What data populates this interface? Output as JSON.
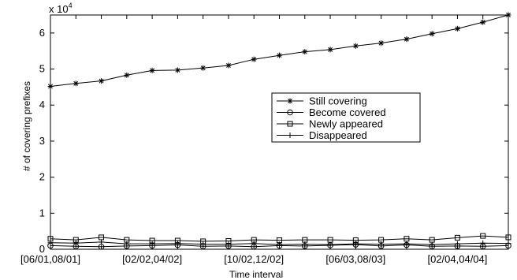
{
  "chart_data": {
    "type": "line",
    "xlabel": "Time interval",
    "ylabel": "# of covering prefixes",
    "y_multiplier": "x 10",
    "y_multiplier_exp": "4",
    "xlim": [
      1,
      19
    ],
    "ylim": [
      0,
      6.5
    ],
    "y_ticks": [
      "0",
      "1",
      "2",
      "3",
      "4",
      "5",
      "6"
    ],
    "x_tick_labels": [
      {
        "x": 1,
        "label": "[06/01,08/01]"
      },
      {
        "x": 5,
        "label": "[02/02,04/02]"
      },
      {
        "x": 9,
        "label": "[10/02,12/02]"
      },
      {
        "x": 13,
        "label": "[06/03,08/03]"
      },
      {
        "x": 17,
        "label": "[02/04,04/04]"
      }
    ],
    "legend_position": "center-right",
    "grid": false,
    "series": [
      {
        "name": "Still covering",
        "marker": "star",
        "x": [
          1,
          2,
          3,
          4,
          5,
          6,
          7,
          8,
          9,
          10,
          11,
          12,
          13,
          14,
          15,
          16,
          17,
          18,
          19
        ],
        "y": [
          4.52,
          4.6,
          4.67,
          4.83,
          4.96,
          4.97,
          5.03,
          5.1,
          5.27,
          5.38,
          5.48,
          5.54,
          5.64,
          5.72,
          5.83,
          5.98,
          6.12,
          6.3,
          6.5
        ]
      },
      {
        "name": "Become covered",
        "marker": "circle",
        "x": [
          1,
          2,
          3,
          4,
          5,
          6,
          7,
          8,
          9,
          10,
          11,
          12,
          13,
          14,
          15,
          16,
          17,
          18,
          19
        ],
        "y": [
          0.1,
          0.08,
          0.07,
          0.09,
          0.1,
          0.12,
          0.08,
          0.09,
          0.07,
          0.1,
          0.09,
          0.11,
          0.13,
          0.09,
          0.12,
          0.08,
          0.09,
          0.08,
          0.1
        ]
      },
      {
        "name": "Newly appeared",
        "marker": "square",
        "x": [
          1,
          2,
          3,
          4,
          5,
          6,
          7,
          8,
          9,
          10,
          11,
          12,
          13,
          14,
          15,
          16,
          17,
          18,
          19
        ],
        "y": [
          0.29,
          0.26,
          0.33,
          0.26,
          0.24,
          0.24,
          0.22,
          0.23,
          0.26,
          0.25,
          0.26,
          0.26,
          0.25,
          0.26,
          0.29,
          0.26,
          0.32,
          0.37,
          0.33
        ]
      },
      {
        "name": "Disappeared",
        "marker": "plus",
        "x": [
          1,
          2,
          3,
          4,
          5,
          6,
          7,
          8,
          9,
          10,
          11,
          12,
          13,
          14,
          15,
          16,
          17,
          18,
          19
        ],
        "y": [
          0.18,
          0.17,
          0.2,
          0.15,
          0.15,
          0.16,
          0.14,
          0.14,
          0.16,
          0.13,
          0.14,
          0.13,
          0.15,
          0.14,
          0.15,
          0.13,
          0.15,
          0.17,
          0.16
        ]
      }
    ]
  }
}
